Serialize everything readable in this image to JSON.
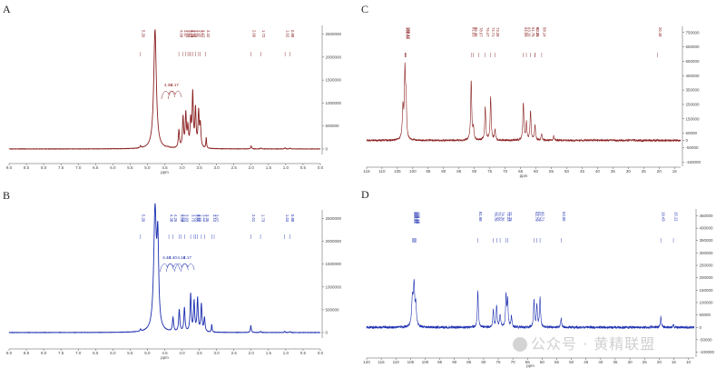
{
  "panels": [
    "A",
    "B",
    "C",
    "D"
  ],
  "watermark": "公众号 · 黄精联盟",
  "chart_data": [
    {
      "panel": "A",
      "type": "line",
      "nucleus": "1H",
      "color": "#8b2020",
      "xlabel": "ppm",
      "xlim": [
        9.0,
        0.0
      ],
      "x_ticks": [
        "9.5",
        "9.0",
        "8.5",
        "8.0",
        "7.5",
        "7.0",
        "6.5",
        "6.0",
        "5.5",
        "5.0",
        "4.5",
        "4.0",
        "3.5",
        "3.0",
        "2.5",
        "2.0",
        "1.5",
        "1.0",
        "0.5",
        "0.0"
      ],
      "x_tick_values": [
        9.5,
        9.0,
        8.5,
        8.0,
        7.5,
        7.0,
        6.5,
        6.0,
        5.5,
        5.0,
        4.5,
        4.0,
        3.5,
        3.0,
        2.5,
        2.0,
        1.5,
        1.0,
        0.5,
        0.0
      ],
      "y_ticks": [
        "2500000",
        "2000000",
        "1500000",
        "1000000",
        "500000",
        "0"
      ],
      "y_tick_values": [
        2500000,
        2000000,
        1500000,
        1000000,
        500000,
        0
      ],
      "ylim": [
        -120000,
        2650000
      ],
      "peak_labels": [
        "5.20",
        "4.09",
        "3.97",
        "3.89",
        "3.83",
        "3.78",
        "3.75",
        "3.69",
        "3.61",
        "3.52",
        "3.47",
        "3.32",
        "2.00",
        "1.72",
        "1.02",
        "0.88"
      ],
      "integral_labels": [
        {
          "text": "4.36",
          "ppm": 4.36
        },
        {
          "text": "4.17",
          "ppm": 4.17
        }
      ],
      "peaks": [
        {
          "ppm": 6.0,
          "h": 5000,
          "w": 0.02
        },
        {
          "ppm": 5.2,
          "h": 45000,
          "w": 0.015
        },
        {
          "ppm": 4.78,
          "h": 2600000,
          "w": 0.045
        },
        {
          "ppm": 4.4,
          "h": 15000,
          "w": 0.03
        },
        {
          "ppm": 4.09,
          "h": 380000,
          "w": 0.02
        },
        {
          "ppm": 3.97,
          "h": 650000,
          "w": 0.02
        },
        {
          "ppm": 3.89,
          "h": 720000,
          "w": 0.02
        },
        {
          "ppm": 3.83,
          "h": 420000,
          "w": 0.02
        },
        {
          "ppm": 3.75,
          "h": 560000,
          "w": 0.02
        },
        {
          "ppm": 3.69,
          "h": 1150000,
          "w": 0.02
        },
        {
          "ppm": 3.61,
          "h": 820000,
          "w": 0.02
        },
        {
          "ppm": 3.52,
          "h": 760000,
          "w": 0.02
        },
        {
          "ppm": 3.47,
          "h": 480000,
          "w": 0.02
        },
        {
          "ppm": 3.3,
          "h": 230000,
          "w": 0.012
        },
        {
          "ppm": 2.0,
          "h": 65000,
          "w": 0.015
        },
        {
          "ppm": 1.72,
          "h": 20000,
          "w": 0.015
        },
        {
          "ppm": 1.02,
          "h": 25000,
          "w": 0.015
        },
        {
          "ppm": 0.88,
          "h": 20000,
          "w": 0.015
        }
      ]
    },
    {
      "panel": "B",
      "type": "line",
      "nucleus": "1H",
      "color": "#1c2fb0",
      "xlabel": "ppm",
      "xlim": [
        9.0,
        0.0
      ],
      "x_ticks": [
        "9.5",
        "9.0",
        "8.5",
        "8.0",
        "7.5",
        "7.0",
        "6.5",
        "6.0",
        "5.5",
        "5.0",
        "4.5",
        "4.0",
        "3.5",
        "3.0",
        "2.5",
        "2.0",
        "1.5",
        "1.0",
        "0.5",
        "0.0"
      ],
      "x_tick_values": [
        9.5,
        9.0,
        8.5,
        8.0,
        7.5,
        7.0,
        6.5,
        6.0,
        5.5,
        5.0,
        4.5,
        4.0,
        3.5,
        3.0,
        2.5,
        2.0,
        1.5,
        1.0,
        0.5,
        0.0
      ],
      "y_ticks": [
        "2500000",
        "2000000",
        "1500000",
        "1000000",
        "500000",
        "0"
      ],
      "y_tick_values": [
        2500000,
        2000000,
        1500000,
        1000000,
        500000,
        0
      ],
      "ylim": [
        -120000,
        2650000
      ],
      "peak_labels": [
        "5.20",
        "4.38",
        "4.26",
        "4.08",
        "4.03",
        "3.93",
        "3.75",
        "3.65",
        "3.61",
        "3.55",
        "3.44",
        "3.35",
        "3.14",
        "3.07",
        "2.01",
        "1.73",
        "1.03",
        "0.88"
      ],
      "integral_labels": [
        {
          "text": "4.40",
          "ppm": 4.4
        },
        {
          "text": "4.40",
          "ppm": 4.22
        },
        {
          "text": "4.16",
          "ppm": 3.98
        },
        {
          "text": "4.17",
          "ppm": 3.8
        }
      ],
      "peaks": [
        {
          "ppm": 5.2,
          "h": 45000,
          "w": 0.015
        },
        {
          "ppm": 4.78,
          "h": 2600000,
          "w": 0.045
        },
        {
          "ppm": 4.7,
          "h": 1800000,
          "w": 0.03
        },
        {
          "ppm": 4.26,
          "h": 300000,
          "w": 0.02
        },
        {
          "ppm": 4.08,
          "h": 480000,
          "w": 0.02
        },
        {
          "ppm": 3.93,
          "h": 520000,
          "w": 0.02
        },
        {
          "ppm": 3.75,
          "h": 820000,
          "w": 0.02
        },
        {
          "ppm": 3.65,
          "h": 650000,
          "w": 0.02
        },
        {
          "ppm": 3.55,
          "h": 720000,
          "w": 0.02
        },
        {
          "ppm": 3.44,
          "h": 600000,
          "w": 0.02
        },
        {
          "ppm": 3.35,
          "h": 300000,
          "w": 0.02
        },
        {
          "ppm": 3.14,
          "h": 170000,
          "w": 0.012
        },
        {
          "ppm": 2.01,
          "h": 150000,
          "w": 0.015
        },
        {
          "ppm": 1.73,
          "h": 25000,
          "w": 0.015
        },
        {
          "ppm": 1.03,
          "h": 25000,
          "w": 0.015
        },
        {
          "ppm": 0.88,
          "h": 20000,
          "w": 0.015
        }
      ]
    },
    {
      "panel": "C",
      "type": "line",
      "nucleus": "13C",
      "color": "#8b2020",
      "xlabel": "ppm",
      "xlim": [
        115,
        13
      ],
      "x_ticks": [
        "115",
        "110",
        "105",
        "100",
        "95",
        "90",
        "85",
        "80",
        "75",
        "70",
        "65",
        "60",
        "55",
        "50",
        "45",
        "40",
        "35",
        "30",
        "25",
        "20",
        "15"
      ],
      "x_tick_values": [
        115,
        110,
        105,
        100,
        95,
        90,
        85,
        80,
        75,
        70,
        65,
        60,
        55,
        50,
        45,
        40,
        35,
        30,
        25,
        20,
        15
      ],
      "y_ticks": [
        "750000",
        "650000",
        "550000",
        "450000",
        "350000",
        "250000",
        "150000",
        "50000",
        "0",
        "-50000",
        "-150000"
      ],
      "y_tick_values": [
        750000,
        650000,
        550000,
        450000,
        350000,
        250000,
        150000,
        50000,
        0,
        -50000,
        -150000
      ],
      "ylim": [
        -180000,
        780000
      ],
      "peak_labels": [
        "102.56",
        "102.44",
        "102.17",
        "81.03",
        "80.30",
        "78.67",
        "76.47",
        "74.71",
        "73.28",
        "64.09",
        "63.10",
        "61.75",
        "60.31",
        "60.26",
        "58.14",
        "20.48"
      ],
      "peaks": [
        {
          "ppm": 103.2,
          "h": 220000,
          "w": 0.25
        },
        {
          "ppm": 102.56,
          "h": 450000,
          "w": 0.2
        },
        {
          "ppm": 102.2,
          "h": 260000,
          "w": 0.2
        },
        {
          "ppm": 81.03,
          "h": 420000,
          "w": 0.2
        },
        {
          "ppm": 80.3,
          "h": 80000,
          "w": 0.2
        },
        {
          "ppm": 76.47,
          "h": 230000,
          "w": 0.2
        },
        {
          "ppm": 74.71,
          "h": 300000,
          "w": 0.2
        },
        {
          "ppm": 73.28,
          "h": 70000,
          "w": 0.2
        },
        {
          "ppm": 64.09,
          "h": 260000,
          "w": 0.2
        },
        {
          "ppm": 63.1,
          "h": 120000,
          "w": 0.2
        },
        {
          "ppm": 61.75,
          "h": 200000,
          "w": 0.2
        },
        {
          "ppm": 60.31,
          "h": 100000,
          "w": 0.2
        },
        {
          "ppm": 58.14,
          "h": 40000,
          "w": 0.2
        },
        {
          "ppm": 54.2,
          "h": 30000,
          "w": 0.2
        }
      ]
    },
    {
      "panel": "D",
      "type": "line",
      "nucleus": "13C",
      "color": "#1c2fb0",
      "xlabel": "ppm",
      "xlim": [
        120,
        8
      ],
      "x_ticks": [
        "120",
        "115",
        "110",
        "105",
        "100",
        "95",
        "90",
        "85",
        "80",
        "75",
        "70",
        "65",
        "60",
        "55",
        "50",
        "45",
        "40",
        "35",
        "30",
        "25",
        "20",
        "15",
        "10"
      ],
      "x_tick_values": [
        120,
        115,
        110,
        105,
        100,
        95,
        90,
        85,
        80,
        75,
        70,
        65,
        60,
        55,
        50,
        45,
        40,
        35,
        30,
        25,
        20,
        15,
        10
      ],
      "y_ticks": [
        "450000",
        "400000",
        "350000",
        "300000",
        "250000",
        "200000",
        "150000",
        "100000",
        "50000",
        "0",
        "-50000",
        "-100000"
      ],
      "y_tick_values": [
        450000,
        400000,
        350000,
        300000,
        250000,
        200000,
        150000,
        100000,
        50000,
        0,
        -50000,
        -100000
      ],
      "ylim": [
        -120000,
        470000
      ],
      "peak_labels": [
        "104.34",
        "103.97",
        "103.79",
        "103.43",
        "103.18",
        "81.98",
        "76.70",
        "75.56",
        "74.36",
        "72.33",
        "71.79",
        "62.79",
        "61.79",
        "60.71",
        "53.50",
        "19.43",
        "15.12"
      ],
      "peaks": [
        {
          "ppm": 104.34,
          "h": 110000,
          "w": 0.3
        },
        {
          "ppm": 103.79,
          "h": 160000,
          "w": 0.25
        },
        {
          "ppm": 103.18,
          "h": 80000,
          "w": 0.25
        },
        {
          "ppm": 81.98,
          "h": 145000,
          "w": 0.2
        },
        {
          "ppm": 76.7,
          "h": 70000,
          "w": 0.2
        },
        {
          "ppm": 75.56,
          "h": 90000,
          "w": 0.2
        },
        {
          "ppm": 74.36,
          "h": 50000,
          "w": 0.2
        },
        {
          "ppm": 72.33,
          "h": 130000,
          "w": 0.2
        },
        {
          "ppm": 71.79,
          "h": 105000,
          "w": 0.2
        },
        {
          "ppm": 70.5,
          "h": 45000,
          "w": 0.2
        },
        {
          "ppm": 62.79,
          "h": 110000,
          "w": 0.2
        },
        {
          "ppm": 61.79,
          "h": 90000,
          "w": 0.2
        },
        {
          "ppm": 60.71,
          "h": 120000,
          "w": 0.2
        },
        {
          "ppm": 53.5,
          "h": 35000,
          "w": 0.2
        },
        {
          "ppm": 19.43,
          "h": 40000,
          "w": 0.2
        },
        {
          "ppm": 15.12,
          "h": 12000,
          "w": 0.2
        }
      ]
    }
  ]
}
